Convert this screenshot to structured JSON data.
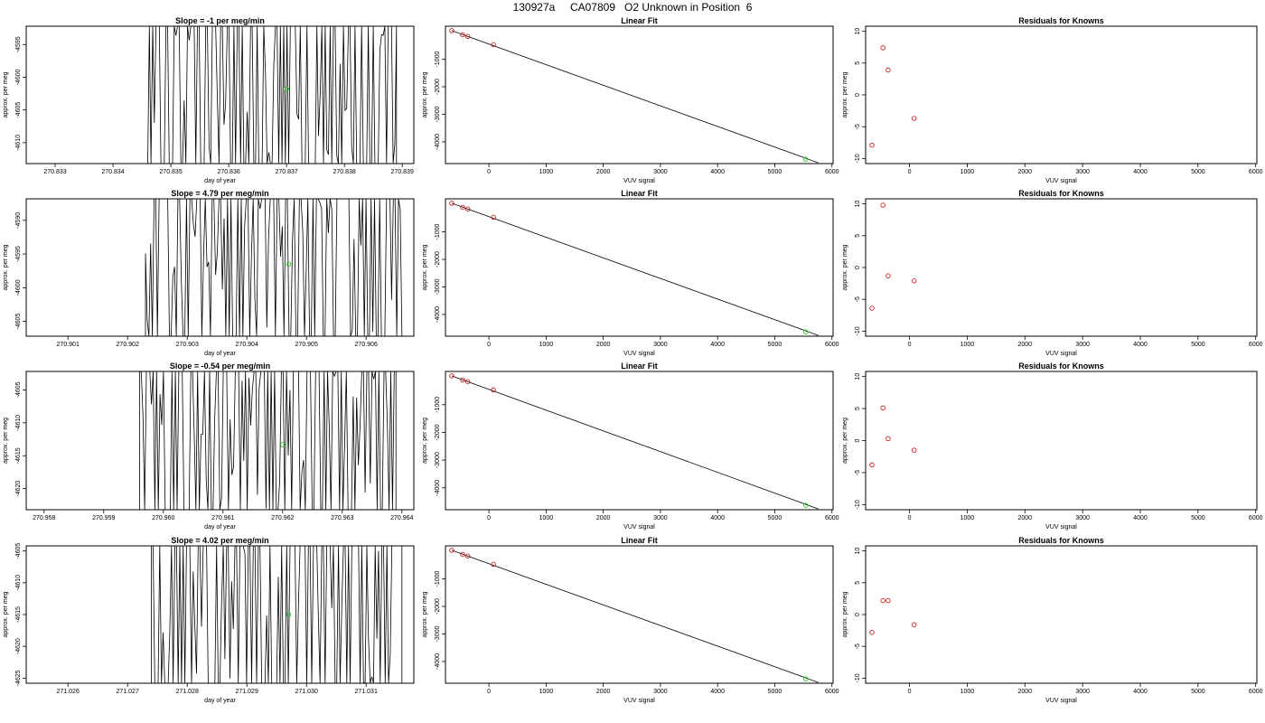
{
  "page": {
    "title": "130927a     CA07809   O2 Unknown in Position  6"
  },
  "chart_data": [
    {
      "type": "line",
      "title": "Slope =  -1  per meg/min",
      "xlabel": "day of year",
      "ylabel": "approx. per meg",
      "xlim": [
        270.8325,
        270.8392
      ],
      "ylim": [
        -4613.2,
        -4592.2
      ],
      "xticks": [
        270.833,
        270.834,
        270.835,
        270.836,
        270.837,
        270.838,
        270.839
      ],
      "xtick_labels": [
        "270.833",
        "270.834",
        "270.835",
        "270.836",
        "270.837",
        "270.838",
        "270.839"
      ],
      "yticks": [
        -4610,
        -4605,
        -4600,
        -4595
      ],
      "ytick_labels": [
        "-4610",
        "-4605",
        "-4600",
        "-4595"
      ],
      "trace_x_range": [
        270.8346,
        270.8389
      ],
      "trace_value_range": [
        -4613.2,
        -4592.2
      ],
      "marker": {
        "x": 270.837,
        "y": -4601.8,
        "color": "#22cc22"
      }
    },
    {
      "type": "scatter",
      "title": "Linear Fit",
      "xlabel": "VUV signal",
      "ylabel": "approx. per meg",
      "xlim": [
        -760,
        6020
      ],
      "ylim": [
        -4790,
        200
      ],
      "xticks": [
        0,
        1000,
        2000,
        3000,
        4000,
        5000,
        6000
      ],
      "xtick_labels": [
        "0",
        "1000",
        "2000",
        "3000",
        "4000",
        "5000",
        "6000"
      ],
      "yticks": [
        -4000,
        -3000,
        -2000,
        -1000
      ],
      "ytick_labels": [
        "-4000",
        "-3000",
        "-2000",
        "-1000"
      ],
      "series": [
        {
          "x": [
            -650,
            -460,
            -370,
            80
          ],
          "y": [
            40,
            -110,
            -170,
            -470
          ],
          "color": "#cc2222"
        },
        {
          "x": [
            5540
          ],
          "y": [
            -4630
          ],
          "color": "#22cc22"
        }
      ],
      "fit_line": {
        "x": [
          -650,
          5760
        ],
        "y": [
          40,
          -4760
        ]
      }
    },
    {
      "type": "scatter",
      "title": "Residuals for Knowns",
      "xlabel": "VUV signal",
      "ylabel": "approx. per meg",
      "xlim": [
        -760,
        6020
      ],
      "ylim": [
        -10.8,
        10.8
      ],
      "xticks": [
        0,
        1000,
        2000,
        3000,
        4000,
        5000,
        6000
      ],
      "xtick_labels": [
        "0",
        "1000",
        "2000",
        "3000",
        "4000",
        "5000",
        "6000"
      ],
      "yticks": [
        -10,
        -5,
        0,
        5,
        10
      ],
      "ytick_labels": [
        "-10",
        "-5",
        "0",
        "5",
        "10"
      ],
      "series": [
        {
          "x": [
            -650,
            -460,
            -370,
            80
          ],
          "y": [
            -7.9,
            7.4,
            3.9,
            -3.7
          ],
          "color": "#cc2222"
        }
      ]
    },
    {
      "type": "line",
      "title": "Slope =  4.79  per meg/min",
      "xlabel": "day of year",
      "ylabel": "approx. per meg",
      "xlim": [
        270.9003,
        270.9068
      ],
      "ylim": [
        -4607.2,
        -4586.8
      ],
      "xticks": [
        270.901,
        270.902,
        270.903,
        270.904,
        270.905,
        270.906
      ],
      "xtick_labels": [
        "270.901",
        "270.902",
        "270.903",
        "270.904",
        "270.905",
        "270.906"
      ],
      "yticks": [
        -4605,
        -4600,
        -4595,
        -4590
      ],
      "ytick_labels": [
        "-4605",
        "-4600",
        "-4595",
        "-4590"
      ],
      "trace_x_range": [
        270.9023,
        270.9066
      ],
      "trace_value_range": [
        -4607.2,
        -4586.8
      ],
      "marker": {
        "x": 270.9047,
        "y": -4596.5,
        "color": "#22cc22"
      }
    },
    {
      "type": "scatter",
      "title": "Linear Fit",
      "xlabel": "VUV signal",
      "ylabel": "approx. per meg",
      "xlim": [
        -760,
        6020
      ],
      "ylim": [
        -4790,
        200
      ],
      "xticks": [
        0,
        1000,
        2000,
        3000,
        4000,
        5000,
        6000
      ],
      "xtick_labels": [
        "0",
        "1000",
        "2000",
        "3000",
        "4000",
        "5000",
        "6000"
      ],
      "yticks": [
        -4000,
        -3000,
        -2000,
        -1000
      ],
      "ytick_labels": [
        "-4000",
        "-3000",
        "-2000",
        "-1000"
      ],
      "series": [
        {
          "x": [
            -650,
            -460,
            -370,
            80
          ],
          "y": [
            40,
            -110,
            -170,
            -470
          ],
          "color": "#cc2222"
        },
        {
          "x": [
            5540
          ],
          "y": [
            -4630
          ],
          "color": "#22cc22"
        }
      ],
      "fit_line": {
        "x": [
          -650,
          5760
        ],
        "y": [
          40,
          -4760
        ]
      }
    },
    {
      "type": "scatter",
      "title": "Residuals for Knowns",
      "xlabel": "VUV signal",
      "ylabel": "approx. per meg",
      "xlim": [
        -760,
        6020
      ],
      "ylim": [
        -10.8,
        10.8
      ],
      "xticks": [
        0,
        1000,
        2000,
        3000,
        4000,
        5000,
        6000
      ],
      "xtick_labels": [
        "0",
        "1000",
        "2000",
        "3000",
        "4000",
        "5000",
        "6000"
      ],
      "yticks": [
        -10,
        -5,
        0,
        5,
        10
      ],
      "ytick_labels": [
        "-10",
        "-5",
        "0",
        "5",
        "10"
      ],
      "series": [
        {
          "x": [
            -650,
            -460,
            -370,
            80
          ],
          "y": [
            -6.4,
            9.8,
            -1.3,
            -2.1
          ],
          "color": "#cc2222"
        }
      ]
    },
    {
      "type": "line",
      "title": "Slope =  -0.54  per meg/min",
      "xlabel": "day of year",
      "ylabel": "approx. per meg",
      "xlim": [
        270.9577,
        270.9642
      ],
      "ylim": [
        -4623.2,
        -4602.2
      ],
      "xticks": [
        270.958,
        270.959,
        270.96,
        270.961,
        270.962,
        270.963,
        270.964
      ],
      "xtick_labels": [
        "270.958",
        "270.959",
        "270.960",
        "270.961",
        "270.962",
        "270.963",
        "270.964"
      ],
      "yticks": [
        -4620,
        -4615,
        -4610,
        -4605
      ],
      "ytick_labels": [
        "-4620",
        "-4615",
        "-4610",
        "-4605"
      ],
      "trace_x_range": [
        270.9596,
        270.9639
      ],
      "trace_value_range": [
        -4623.2,
        -4602.2
      ],
      "marker": {
        "x": 270.962,
        "y": -4613.3,
        "color": "#22cc22"
      }
    },
    {
      "type": "scatter",
      "title": "Linear Fit",
      "xlabel": "VUV signal",
      "ylabel": "approx. per meg",
      "xlim": [
        -760,
        6020
      ],
      "ylim": [
        -4790,
        200
      ],
      "xticks": [
        0,
        1000,
        2000,
        3000,
        4000,
        5000,
        6000
      ],
      "xtick_labels": [
        "0",
        "1000",
        "2000",
        "3000",
        "4000",
        "5000",
        "6000"
      ],
      "yticks": [
        -4000,
        -3000,
        -2000,
        -1000
      ],
      "ytick_labels": [
        "-4000",
        "-3000",
        "-2000",
        "-1000"
      ],
      "series": [
        {
          "x": [
            -650,
            -460,
            -370,
            80
          ],
          "y": [
            40,
            -110,
            -170,
            -470
          ],
          "color": "#cc2222"
        },
        {
          "x": [
            5540
          ],
          "y": [
            -4630
          ],
          "color": "#22cc22"
        }
      ],
      "fit_line": {
        "x": [
          -650,
          5760
        ],
        "y": [
          40,
          -4760
        ]
      }
    },
    {
      "type": "scatter",
      "title": "Residuals for Knowns",
      "xlabel": "VUV signal",
      "ylabel": "approx. per meg",
      "xlim": [
        -760,
        6020
      ],
      "ylim": [
        -10.8,
        10.8
      ],
      "xticks": [
        0,
        1000,
        2000,
        3000,
        4000,
        5000,
        6000
      ],
      "xtick_labels": [
        "0",
        "1000",
        "2000",
        "3000",
        "4000",
        "5000",
        "6000"
      ],
      "yticks": [
        -10,
        -5,
        0,
        5,
        10
      ],
      "ytick_labels": [
        "-10",
        "-5",
        "0",
        "5",
        "10"
      ],
      "series": [
        {
          "x": [
            -650,
            -460,
            -370,
            80
          ],
          "y": [
            -3.8,
            5.1,
            0.3,
            -1.5
          ],
          "color": "#cc2222"
        }
      ]
    },
    {
      "type": "line",
      "title": "Slope =  4.02  per meg/min",
      "xlabel": "day of year",
      "ylabel": "approx. per meg",
      "xlim": [
        271.0253,
        271.0318
      ],
      "ylim": [
        -4625.8,
        -4604.2
      ],
      "xticks": [
        271.026,
        271.027,
        271.028,
        271.029,
        271.03,
        271.031
      ],
      "xtick_labels": [
        "271.026",
        "271.027",
        "271.028",
        "271.029",
        "271.030",
        "271.031"
      ],
      "yticks": [
        -4625,
        -4620,
        -4615,
        -4610,
        -4605
      ],
      "ytick_labels": [
        "-4625",
        "-4620",
        "-4615",
        "-4610",
        "-4605"
      ],
      "trace_x_range": [
        271.0274,
        271.0316
      ],
      "trace_value_range": [
        -4625.8,
        -4604.2
      ],
      "marker": {
        "x": 271.0297,
        "y": -4615.0,
        "color": "#22cc22"
      }
    },
    {
      "type": "scatter",
      "title": "Linear Fit",
      "xlabel": "VUV signal",
      "ylabel": "approx. per meg",
      "xlim": [
        -760,
        6020
      ],
      "ylim": [
        -4790,
        200
      ],
      "xticks": [
        0,
        1000,
        2000,
        3000,
        4000,
        5000,
        6000
      ],
      "xtick_labels": [
        "0",
        "1000",
        "2000",
        "3000",
        "4000",
        "5000",
        "6000"
      ],
      "yticks": [
        -4000,
        -3000,
        -2000,
        -1000
      ],
      "ytick_labels": [
        "-4000",
        "-3000",
        "-2000",
        "-1000"
      ],
      "series": [
        {
          "x": [
            -650,
            -460,
            -370,
            80
          ],
          "y": [
            40,
            -110,
            -170,
            -470
          ],
          "color": "#cc2222"
        },
        {
          "x": [
            5540
          ],
          "y": [
            -4630
          ],
          "color": "#22cc22"
        }
      ],
      "fit_line": {
        "x": [
          -650,
          5760
        ],
        "y": [
          40,
          -4760
        ]
      }
    },
    {
      "type": "scatter",
      "title": "Residuals for Knowns",
      "xlabel": "VUV signal",
      "ylabel": "approx. per meg",
      "xlim": [
        -760,
        6020
      ],
      "ylim": [
        -10.8,
        10.8
      ],
      "xticks": [
        0,
        1000,
        2000,
        3000,
        4000,
        5000,
        6000
      ],
      "xtick_labels": [
        "0",
        "1000",
        "2000",
        "3000",
        "4000",
        "5000",
        "6000"
      ],
      "yticks": [
        -10,
        -5,
        0,
        5,
        10
      ],
      "ytick_labels": [
        "-10",
        "-5",
        "0",
        "5",
        "10"
      ],
      "series": [
        {
          "x": [
            -650,
            -460,
            -370,
            80
          ],
          "y": [
            -2.8,
            2.2,
            2.2,
            -1.6
          ],
          "color": "#cc2222"
        }
      ]
    }
  ]
}
